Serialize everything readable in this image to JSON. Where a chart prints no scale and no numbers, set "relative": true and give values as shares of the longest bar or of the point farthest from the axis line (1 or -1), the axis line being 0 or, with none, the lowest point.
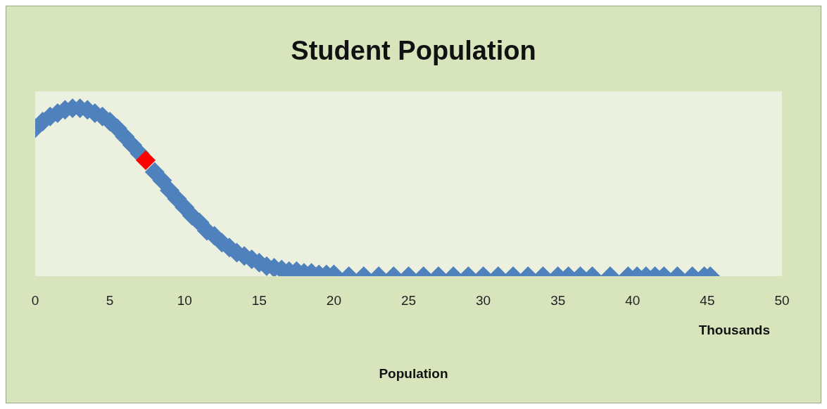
{
  "chart_data": {
    "type": "scatter",
    "title": "Student Population",
    "xlabel": "Population",
    "annotations": [
      "Thousands"
    ],
    "relative": true,
    "xlim": [
      0,
      50
    ],
    "xticks": [
      0,
      5,
      10,
      15,
      20,
      25,
      30,
      35,
      40,
      45,
      50
    ],
    "grid": false,
    "legend": false,
    "marker": "diamond",
    "series": [
      {
        "color": "#4f81bd",
        "x": [
          0,
          0.5,
          1,
          1.5,
          2,
          2.5,
          3,
          3.5,
          4,
          4.5,
          5,
          5.5,
          6,
          6.5,
          7,
          7.5,
          8,
          8.5,
          9,
          9.5,
          10,
          10.5,
          11,
          11.5,
          12,
          12.5,
          13,
          13.5,
          14,
          14.5,
          15,
          15.5,
          16,
          16.5,
          17,
          17.5,
          18,
          18.5,
          19,
          19.5,
          20,
          21,
          22,
          23,
          24,
          25,
          26,
          27,
          28,
          29,
          30,
          31,
          32,
          33,
          34,
          35,
          35.7,
          36.5,
          37.3,
          38.5,
          39.7,
          40.3,
          40.9,
          41.5,
          42.1,
          43,
          44,
          44.8,
          45.2
        ],
        "values": [
          0.88,
          0.92,
          0.95,
          0.97,
          0.99,
          1,
          1,
          0.99,
          0.97,
          0.95,
          0.92,
          0.88,
          0.83,
          0.78,
          0.73,
          null,
          0.62,
          0.57,
          0.51,
          0.46,
          0.41,
          0.36,
          0.32,
          0.27,
          0.24,
          0.2,
          0.17,
          0.14,
          0.12,
          0.1,
          0.08,
          0.06,
          0.05,
          0.04,
          0.03,
          0.03,
          0.02,
          0.02,
          0.01,
          0.01,
          0.01,
          0,
          0,
          0,
          0,
          0,
          0,
          0,
          0,
          0,
          0,
          0,
          0,
          0,
          0,
          0,
          0,
          0,
          0,
          0,
          0,
          0,
          0,
          0,
          0,
          0,
          0,
          0,
          0
        ]
      },
      {
        "color": "#ff0000",
        "x": [
          7.4
        ],
        "values": [
          0.69
        ]
      }
    ]
  }
}
